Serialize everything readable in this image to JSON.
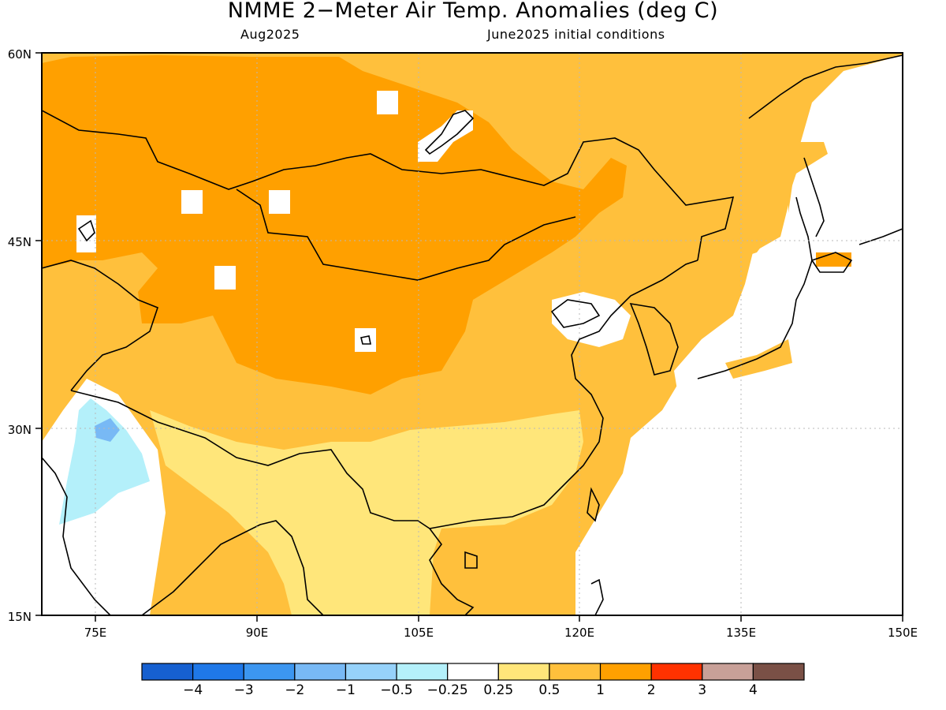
{
  "title": "NMME 2−Meter Air Temp. Anomalies (deg C)",
  "subtitle_left": "Aug2025",
  "subtitle_right": "June2025 initial conditions",
  "lat_labels": [
    "60N",
    "45N",
    "30N",
    "15N"
  ],
  "lon_labels": [
    "75E",
    "90E",
    "105E",
    "120E",
    "135E",
    "150E"
  ],
  "colorbar": {
    "colors": [
      "#1660d0",
      "#1f78e8",
      "#3c96f0",
      "#78b9f5",
      "#96d2fa",
      "#b4f0fa",
      "#ffffff",
      "#ffe67a",
      "#ffc03c",
      "#ffa000",
      "#ff3200",
      "#c8a098",
      "#7a5046"
    ],
    "labels": [
      "−4",
      "−3",
      "−2",
      "−1",
      "−0.5",
      "−0.25",
      "0.25",
      "0.5",
      "1",
      "2",
      "3",
      "4"
    ]
  },
  "map_extent": {
    "lon": [
      70,
      150
    ],
    "lat": [
      15,
      60
    ]
  }
}
